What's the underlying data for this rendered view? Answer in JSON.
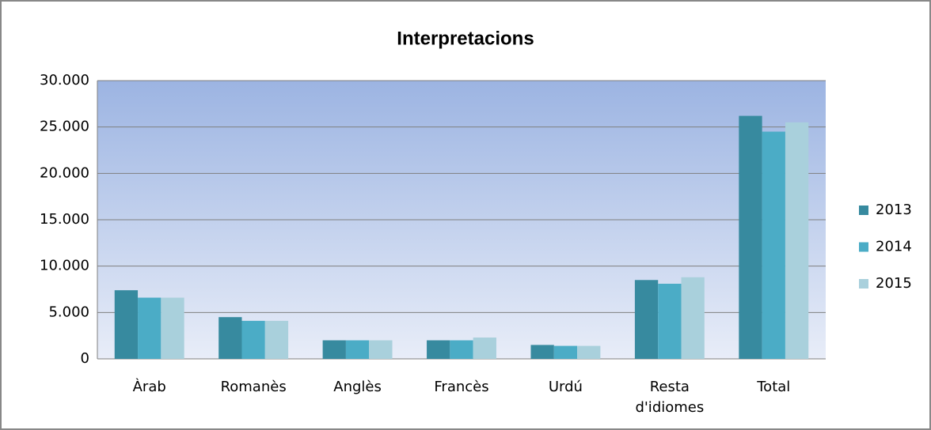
{
  "chart_data": {
    "type": "bar",
    "title": "Interpretacions",
    "categories": [
      "Àrab",
      "Romanès",
      "Anglès",
      "Francès",
      "Urdú",
      "Resta d'idiomes",
      "Total"
    ],
    "series": [
      {
        "name": "2013",
        "color": "#378a9f",
        "values": [
          7400,
          4500,
          2000,
          2000,
          1500,
          8500,
          26200
        ]
      },
      {
        "name": "2014",
        "color": "#4bacc6",
        "values": [
          6600,
          4100,
          2000,
          2000,
          1400,
          8100,
          24500
        ]
      },
      {
        "name": "2015",
        "color": "#a9d0dc",
        "values": [
          6600,
          4100,
          2000,
          2300,
          1400,
          8800,
          25500
        ]
      }
    ],
    "ylim": [
      0,
      30000
    ],
    "yticks": [
      0,
      {
        "value": 5000,
        "label": "5.000"
      },
      {
        "value": 10000,
        "label": "10.000"
      },
      {
        "value": 15000,
        "label": "15.000"
      },
      {
        "value": 20000,
        "label": "20.000"
      },
      {
        "value": 25000,
        "label": "25.000"
      },
      {
        "value": 30000,
        "label": "30.000"
      }
    ],
    "grid": true,
    "legend": "right"
  }
}
